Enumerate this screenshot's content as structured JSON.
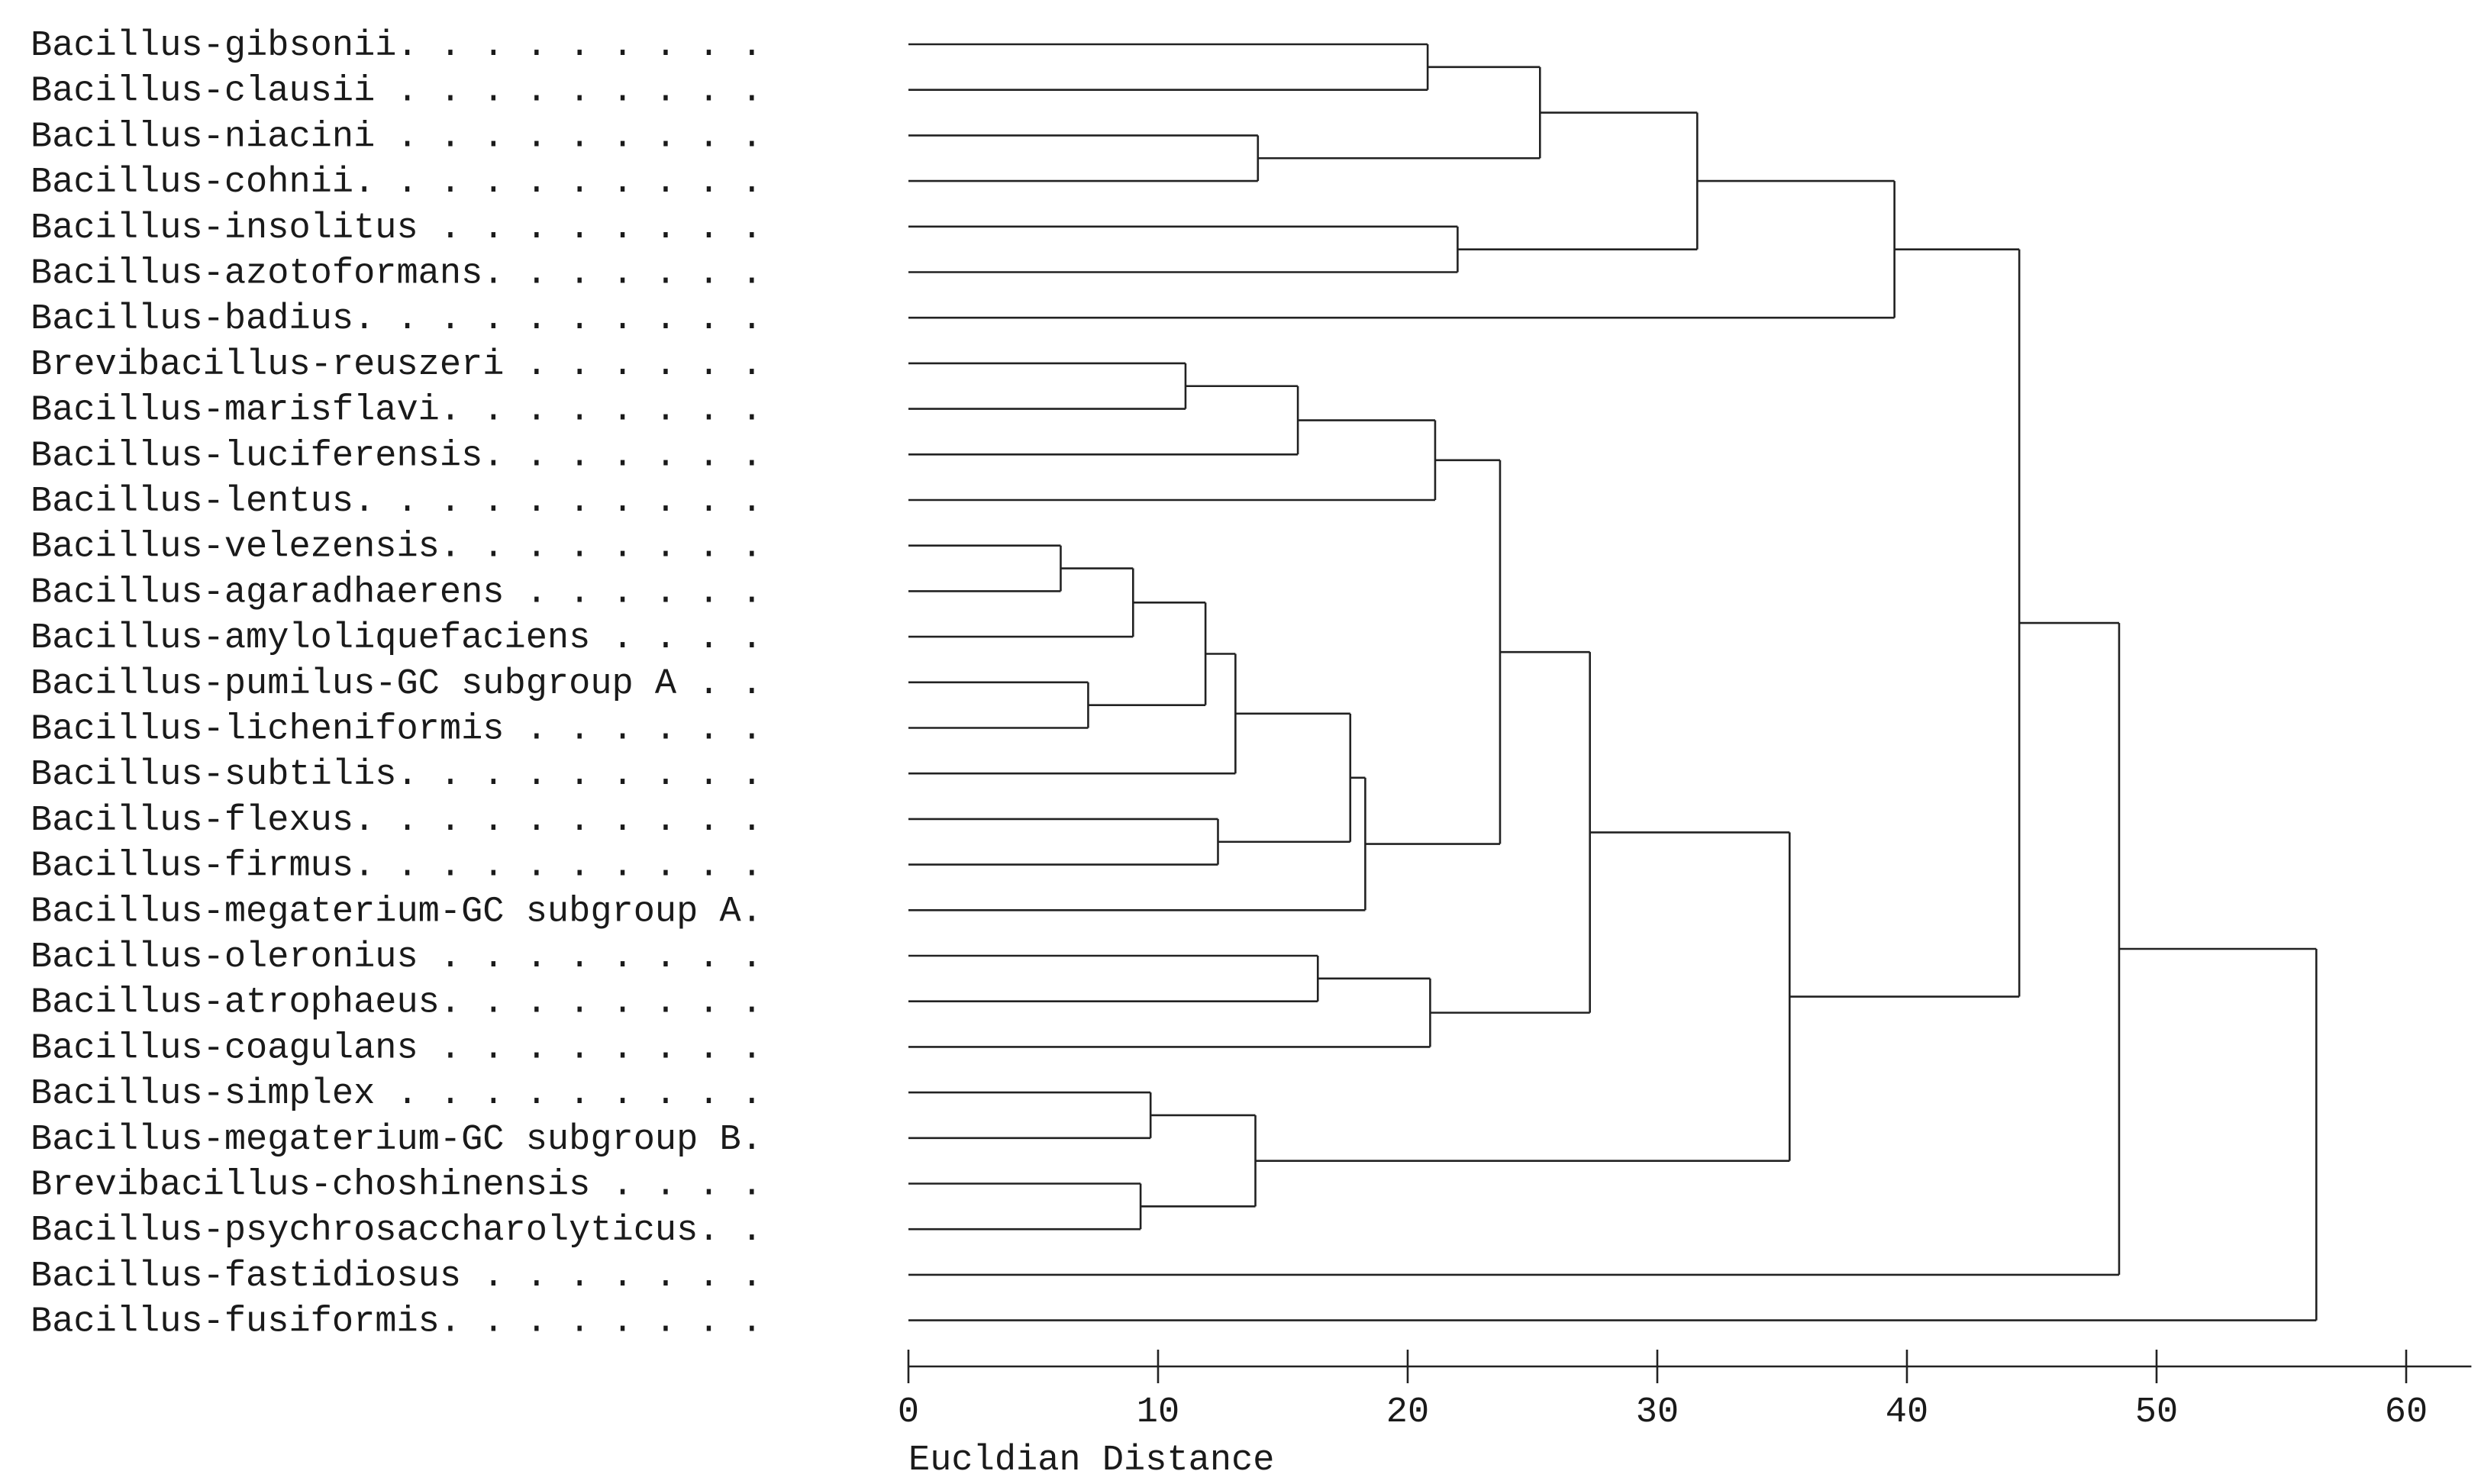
{
  "chart_data": {
    "type": "dendrogram",
    "title": "",
    "xlabel": "Eucldian Distance",
    "xlim": [
      0,
      62
    ],
    "x_ticks": [
      0,
      10,
      20,
      30,
      40,
      50,
      60
    ],
    "leaf_labels": [
      "Bacillus-gibsonii. . . . . . . . .",
      "Bacillus-clausii . . . . . . . . .",
      "Bacillus-niacini . . . . . . . . .",
      "Bacillus-cohnii. . . . . . . . . .",
      "Bacillus-insolitus . . . . . . . .",
      "Bacillus-azotoformans. . . . . . .",
      "Bacillus-badius. . . . . . . . . .",
      "Brevibacillus-reuszeri . . . . . .",
      "Bacillus-marisflavi. . . . . . . .",
      "Bacillus-luciferensis. . . . . . .",
      "Bacillus-lentus. . . . . . . . . .",
      "Bacillus-velezensis. . . . . . . .",
      "Bacillus-agaradhaerens . . . . . .",
      "Bacillus-amyloliquefaciens . . . .",
      "Bacillus-pumilus-GC subgroup A . .",
      "Bacillus-licheniformis . . . . . .",
      "Bacillus-subtilis. . . . . . . . .",
      "Bacillus-flexus. . . . . . . . . .",
      "Bacillus-firmus. . . . . . . . . .",
      "Bacillus-megaterium-GC subgroup A.",
      "Bacillus-oleronius . . . . . . . .",
      "Bacillus-atrophaeus. . . . . . . .",
      "Bacillus-coagulans . . . . . . . .",
      "Bacillus-simplex . . . . . . . . .",
      "Bacillus-megaterium-GC subgroup B.",
      "Brevibacillus-choshinensis . . . .",
      "Bacillus-psychrosaccharolyticus. .",
      "Bacillus-fastidiosus . . . . . . .",
      "Bacillus-fusiformis. . . . . . . ."
    ],
    "merges": [
      {
        "id": "N1",
        "a": "L0",
        "b": "L1",
        "height": 20.8
      },
      {
        "id": "N2",
        "a": "L2",
        "b": "L3",
        "height": 14.0
      },
      {
        "id": "N3",
        "a": "N1",
        "b": "N2",
        "height": 25.3
      },
      {
        "id": "N4",
        "a": "L4",
        "b": "L5",
        "height": 22.0
      },
      {
        "id": "N5",
        "a": "N3",
        "b": "N4",
        "height": 31.6
      },
      {
        "id": "N6",
        "a": "N5",
        "b": "L6",
        "height": 39.5
      },
      {
        "id": "N7",
        "a": "L7",
        "b": "L8",
        "height": 11.1
      },
      {
        "id": "N8",
        "a": "N7",
        "b": "L9",
        "height": 15.6
      },
      {
        "id": "N9",
        "a": "N8",
        "b": "L10",
        "height": 21.1
      },
      {
        "id": "N10",
        "a": "L11",
        "b": "L12",
        "height": 6.1
      },
      {
        "id": "N11",
        "a": "N10",
        "b": "L13",
        "height": 9.0
      },
      {
        "id": "N12",
        "a": "L14",
        "b": "L15",
        "height": 7.2
      },
      {
        "id": "N13",
        "a": "N11",
        "b": "N12",
        "height": 11.9
      },
      {
        "id": "N14",
        "a": "N13",
        "b": "L16",
        "height": 13.1
      },
      {
        "id": "N15",
        "a": "L17",
        "b": "L18",
        "height": 12.4
      },
      {
        "id": "N16",
        "a": "N14",
        "b": "N15",
        "height": 17.7
      },
      {
        "id": "N17",
        "a": "N16",
        "b": "L19",
        "height": 18.3
      },
      {
        "id": "N18",
        "a": "N9",
        "b": "N17",
        "height": 23.7
      },
      {
        "id": "N19",
        "a": "L20",
        "b": "L21",
        "height": 16.4
      },
      {
        "id": "N20",
        "a": "N19",
        "b": "L22",
        "height": 20.9
      },
      {
        "id": "N21",
        "a": "N18",
        "b": "N20",
        "height": 27.3
      },
      {
        "id": "N22",
        "a": "L23",
        "b": "L24",
        "height": 9.7
      },
      {
        "id": "N23",
        "a": "L25",
        "b": "L26",
        "height": 9.3
      },
      {
        "id": "N24",
        "a": "N22",
        "b": "N23",
        "height": 13.9
      },
      {
        "id": "N25",
        "a": "N21",
        "b": "N24",
        "height": 35.3
      },
      {
        "id": "N26",
        "a": "N6",
        "b": "N25",
        "height": 44.5
      },
      {
        "id": "N27",
        "a": "N26",
        "b": "L27",
        "height": 48.5
      },
      {
        "id": "N28",
        "a": "N27",
        "b": "L28",
        "height": 56.4
      }
    ]
  }
}
